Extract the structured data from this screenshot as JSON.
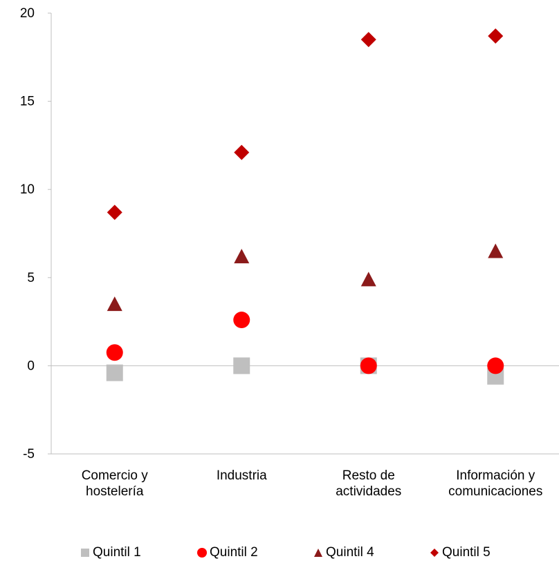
{
  "chart_data": {
    "type": "scatter",
    "title": "",
    "xlabel": "",
    "ylabel": "",
    "ylim": [
      -5,
      20
    ],
    "yticks": [
      "-5",
      "0",
      "5",
      "10",
      "15",
      "20"
    ],
    "categories": [
      [
        "Comercio y",
        "hostelería"
      ],
      [
        "Industria"
      ],
      [
        "Resto de",
        "actividades"
      ],
      [
        "Información y",
        "comunicaciones"
      ]
    ],
    "grid": false,
    "legend_position": "bottom",
    "series": [
      {
        "name": "Quintil 1",
        "marker": "square",
        "color": "#BFBFBF",
        "values": [
          -0.4,
          0.0,
          0.0,
          -0.6
        ]
      },
      {
        "name": "Quintil 2",
        "marker": "circle",
        "color": "#FF0000",
        "values": [
          0.75,
          2.6,
          0.0,
          0.0
        ]
      },
      {
        "name": "Quintil 4",
        "marker": "triangle",
        "color": "#8B1A1A",
        "values": [
          3.5,
          6.2,
          4.9,
          6.5
        ]
      },
      {
        "name": "Quintil 5",
        "marker": "diamond",
        "color": "#C00000",
        "values": [
          8.7,
          12.1,
          18.5,
          18.7
        ]
      }
    ]
  }
}
